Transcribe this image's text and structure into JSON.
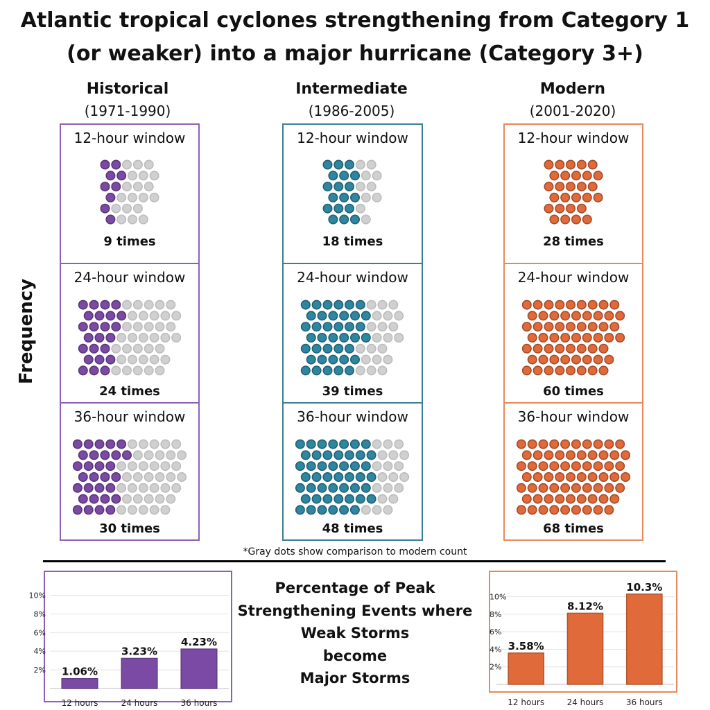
{
  "title_line1": "Atlantic tropical cyclones strengthening from Category 1",
  "title_line2": "(or weaker) into a major hurricane (Category 3+)",
  "y_axis_label": "Frequency",
  "footnote": "*Gray dots show comparison to modern count",
  "percentage_title": [
    "Percentage of Peak",
    "Strengthening Events where",
    "Weak Storms",
    "become",
    "Major Storms"
  ],
  "colors": {
    "historical": "#7B4AA5",
    "intermediate": "#2E86A0",
    "modern": "#E06A3A",
    "gray": "#d0d0d0",
    "hist_border": "#8D60B5",
    "int_border": "#3A7F93",
    "mod_border": "#E8875A"
  },
  "chart_data": [
    {
      "type": "dot-matrix",
      "title": "Atlantic tropical cyclones strengthening from Category 1 (or weaker) into a major hurricane (Category 3+)",
      "ylabel": "Frequency",
      "note": "Gray dots show comparison to modern count",
      "eras": [
        {
          "key": "historical",
          "name": "Historical",
          "range": "(1971-1990)",
          "windows": [
            {
              "label": "12-hour window",
              "count": 9,
              "count_label": "9 times",
              "comparison_total": 28
            },
            {
              "label": "24-hour window",
              "count": 24,
              "count_label": "24 times",
              "comparison_total": 60
            },
            {
              "label": "36-hour window",
              "count": 30,
              "count_label": "30 times",
              "comparison_total": 68
            }
          ]
        },
        {
          "key": "intermediate",
          "name": "Intermediate",
          "range": "(1986-2005)",
          "windows": [
            {
              "label": "12-hour window",
              "count": 18,
              "count_label": "18 times",
              "comparison_total": 28
            },
            {
              "label": "24-hour window",
              "count": 39,
              "count_label": "39 times",
              "comparison_total": 60
            },
            {
              "label": "36-hour window",
              "count": 48,
              "count_label": "48 times",
              "comparison_total": 68
            }
          ]
        },
        {
          "key": "modern",
          "name": "Modern",
          "range": "(2001-2020)",
          "windows": [
            {
              "label": "12-hour window",
              "count": 28,
              "count_label": "28 times",
              "comparison_total": 28
            },
            {
              "label": "24-hour window",
              "count": 60,
              "count_label": "60 times",
              "comparison_total": 60
            },
            {
              "label": "36-hour window",
              "count": 68,
              "count_label": "68 times",
              "comparison_total": 68
            }
          ]
        }
      ]
    },
    {
      "type": "bar",
      "series_name": "Historical",
      "categories": [
        "12 hours",
        "24 hours",
        "36 hours"
      ],
      "values": [
        1.06,
        3.23,
        4.23
      ],
      "value_labels": [
        "1.06%",
        "3.23%",
        "4.23%"
      ],
      "y_ticks": [
        "2%",
        "4%",
        "6%",
        "8%",
        "10%"
      ],
      "ylim": [
        0,
        11
      ]
    },
    {
      "type": "bar",
      "series_name": "Modern",
      "categories": [
        "12 hours",
        "24 hours",
        "36 hours"
      ],
      "values": [
        3.58,
        8.12,
        10.3
      ],
      "value_labels": [
        "3.58%",
        "8.12%",
        "10.3%"
      ],
      "y_ticks": [
        "2%",
        "4%",
        "6%",
        "8%",
        "10%"
      ],
      "ylim": [
        0,
        11
      ]
    }
  ]
}
